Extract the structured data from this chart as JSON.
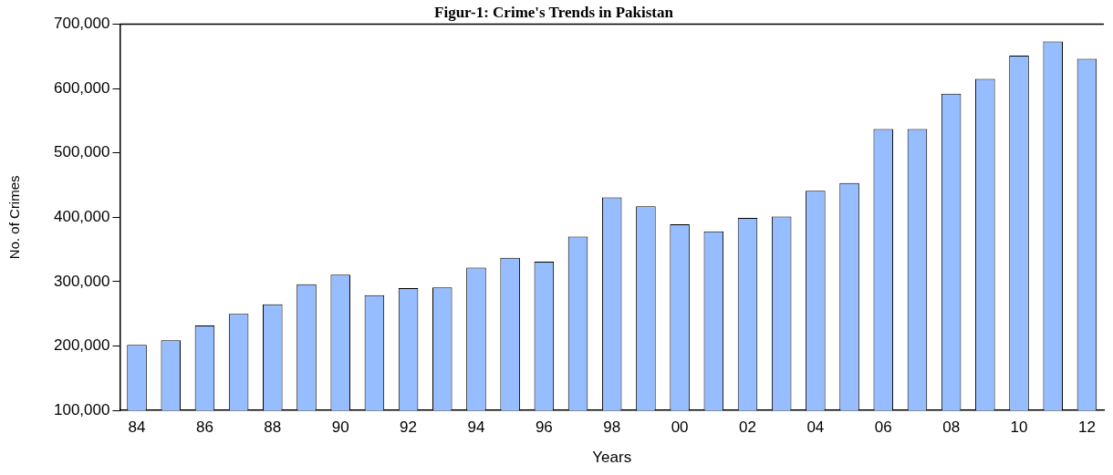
{
  "chart_data": {
    "type": "bar",
    "title": "Figur-1: Crime's Trends in Pakistan",
    "xlabel": "Years",
    "ylabel": "No. of Crimes",
    "categories": [
      "84",
      null,
      "86",
      null,
      "88",
      null,
      "90",
      null,
      "92",
      null,
      "94",
      null,
      "96",
      null,
      "98",
      null,
      "00",
      null,
      "02",
      null,
      "04",
      null,
      "06",
      null,
      "08",
      null,
      "10",
      null,
      "12"
    ],
    "values": [
      202000,
      209000,
      232000,
      250000,
      265000,
      296000,
      311000,
      279000,
      290000,
      291000,
      322000,
      337000,
      331000,
      370000,
      431000,
      417000,
      389000,
      378000,
      399000,
      401000,
      441000,
      453000,
      537000,
      537000,
      592000,
      615000,
      651000,
      673000,
      646000
    ],
    "color": "#96bdff",
    "ylim": [
      100000,
      700000
    ],
    "yticks": [
      {
        "value": 100000,
        "label": "100,000"
      },
      {
        "value": 200000,
        "label": "200,000"
      },
      {
        "value": 300000,
        "label": "300,000"
      },
      {
        "value": 400000,
        "label": "400,000"
      },
      {
        "value": 500000,
        "label": "500,000"
      },
      {
        "value": 600000,
        "label": "600,000"
      },
      {
        "value": 700000,
        "label": "700,000"
      }
    ],
    "grid": false,
    "legend": false
  }
}
